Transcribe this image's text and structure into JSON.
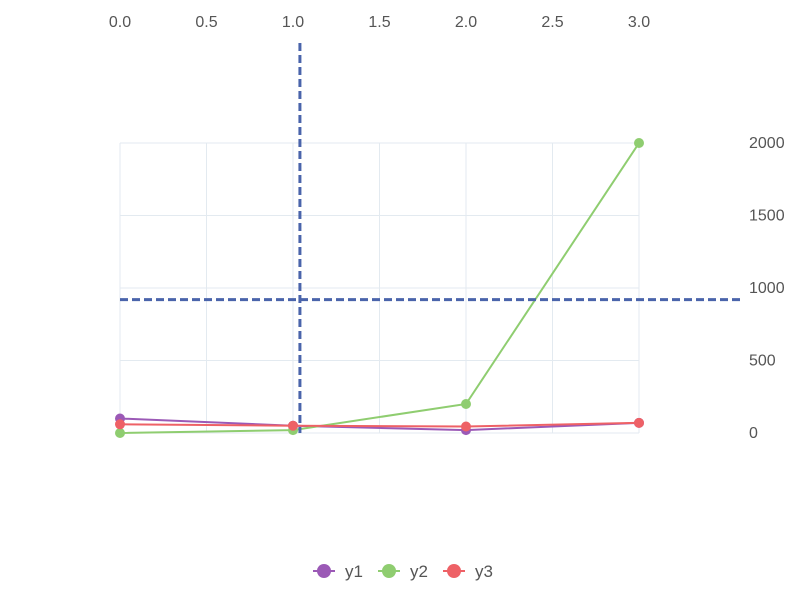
{
  "chart_data": {
    "type": "line",
    "x": [
      0,
      1,
      2,
      3
    ],
    "xlim": [
      0,
      3
    ],
    "ylim": [
      0,
      2000
    ],
    "x_ticks": [
      "0.0",
      "0.5",
      "1.0",
      "1.5",
      "2.0",
      "2.5",
      "3.0"
    ],
    "x_tick_values": [
      0,
      0.5,
      1,
      1.5,
      2,
      2.5,
      3
    ],
    "y_ticks": [
      "0",
      "500",
      "1000",
      "1500",
      "2000"
    ],
    "y_tick_values": [
      0,
      500,
      1000,
      1500,
      2000
    ],
    "x_axis_position": "top",
    "y_axis_position": "right",
    "grid": true,
    "legend_position": "bottom-center",
    "series": [
      {
        "name": "y1",
        "color": "#9b59b6",
        "values": [
          100,
          50,
          20,
          70
        ]
      },
      {
        "name": "y2",
        "color": "#8fcd70",
        "values": [
          0,
          20,
          200,
          2000
        ]
      },
      {
        "name": "y3",
        "color": "#ee6166",
        "values": [
          60,
          50,
          45,
          70
        ]
      }
    ],
    "crosshair": {
      "x": 1.04,
      "y": 920,
      "color": "#4a64ab"
    }
  }
}
